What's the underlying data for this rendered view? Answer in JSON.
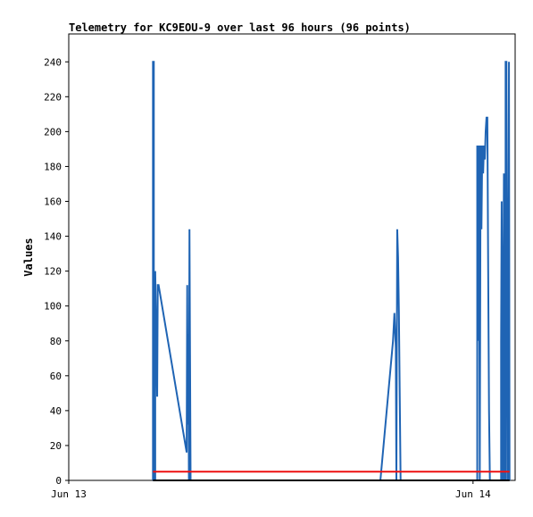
{
  "chart_data": {
    "type": "line",
    "title": "Telemetry for KC9EOU-9 over last 96 hours (96 points)",
    "xlabel": "",
    "ylabel": "Values",
    "xlim": [
      "Jun 13 00:00",
      "Jun 14 02:30"
    ],
    "ylim": [
      0,
      256
    ],
    "y_ticks": [
      0,
      20,
      40,
      60,
      80,
      100,
      120,
      140,
      160,
      180,
      200,
      220,
      240
    ],
    "x_ticks": [
      {
        "label": "Jun 13",
        "x": "Jun 13 00:00"
      },
      {
        "label": "Jun 14",
        "x": "Jun 14 00:00"
      }
    ],
    "grid": false,
    "legend": "none",
    "series": [
      {
        "color": "#1f64b4",
        "points": [
          [
            "Jun 13 05:00",
            0
          ],
          [
            "Jun 13 05:00",
            240
          ],
          [
            "Jun 13 05:03",
            240
          ],
          [
            "Jun 13 05:03",
            0
          ],
          [
            "Jun 13 05:08",
            0
          ],
          [
            "Jun 13 05:08",
            120
          ],
          [
            "Jun 13 05:12",
            80
          ],
          [
            "Jun 13 05:15",
            48
          ],
          [
            "Jun 13 05:17",
            112
          ],
          [
            "Jun 13 05:20",
            112
          ],
          [
            "Jun 13 07:00",
            16
          ],
          [
            "Jun 13 07:02",
            112
          ],
          [
            "Jun 13 07:04",
            32
          ],
          [
            "Jun 13 07:06",
            84
          ],
          [
            "Jun 13 07:08",
            0
          ],
          [
            "Jun 13 07:10",
            144
          ],
          [
            "Jun 13 07:12",
            72
          ],
          [
            "Jun 13 07:14",
            0
          ]
        ]
      },
      {
        "color": "#1f64b4",
        "points": [
          [
            "Jun 13 18:30",
            0
          ],
          [
            "Jun 13 19:15",
            80
          ],
          [
            "Jun 13 19:20",
            96
          ],
          [
            "Jun 13 19:25",
            76
          ],
          [
            "Jun 13 19:27",
            0
          ],
          [
            "Jun 13 19:30",
            144
          ],
          [
            "Jun 13 19:33",
            128
          ],
          [
            "Jun 13 19:36",
            96
          ],
          [
            "Jun 13 19:40",
            32
          ],
          [
            "Jun 13 19:42",
            0
          ]
        ]
      },
      {
        "color": "#1f64b4",
        "points": [
          [
            "Jun 14 00:15",
            0
          ],
          [
            "Jun 14 00:15",
            192
          ],
          [
            "Jun 14 00:18",
            80
          ],
          [
            "Jun 14 00:21",
            192
          ],
          [
            "Jun 14 00:24",
            0
          ],
          [
            "Jun 14 00:27",
            192
          ],
          [
            "Jun 14 00:30",
            144
          ],
          [
            "Jun 14 00:33",
            192
          ],
          [
            "Jun 14 00:36",
            176
          ],
          [
            "Jun 14 00:39",
            192
          ],
          [
            "Jun 14 00:42",
            184
          ],
          [
            "Jun 14 00:45",
            200
          ],
          [
            "Jun 14 00:48",
            208
          ],
          [
            "Jun 14 00:51",
            208
          ],
          [
            "Jun 14 00:54",
            120
          ],
          [
            "Jun 14 00:57",
            40
          ],
          [
            "Jun 14 01:00",
            0
          ]
        ]
      },
      {
        "color": "#1f64b4",
        "points": [
          [
            "Jun 14 01:40",
            0
          ],
          [
            "Jun 14 01:40",
            80
          ],
          [
            "Jun 14 01:42",
            160
          ],
          [
            "Jun 14 01:44",
            80
          ],
          [
            "Jun 14 01:46",
            0
          ],
          [
            "Jun 14 01:48",
            88
          ],
          [
            "Jun 14 01:50",
            176
          ],
          [
            "Jun 14 01:52",
            0
          ],
          [
            "Jun 14 01:56",
            0
          ],
          [
            "Jun 14 01:56",
            240
          ],
          [
            "Jun 14 01:59",
            240
          ],
          [
            "Jun 14 02:01",
            120
          ],
          [
            "Jun 14 02:03",
            0
          ],
          [
            "Jun 14 02:06",
            0
          ],
          [
            "Jun 14 02:06",
            120
          ],
          [
            "Jun 14 02:08",
            240
          ],
          [
            "Jun 14 02:10",
            0
          ]
        ]
      },
      {
        "color": "#ee1111",
        "points": [
          [
            "Jun 13 05:00",
            5
          ],
          [
            "Jun 14 02:10",
            5
          ]
        ]
      },
      {
        "color": "#000000",
        "points": [
          [
            "Jun 13 05:00",
            0
          ],
          [
            "Jun 14 02:10",
            0
          ]
        ]
      }
    ]
  }
}
